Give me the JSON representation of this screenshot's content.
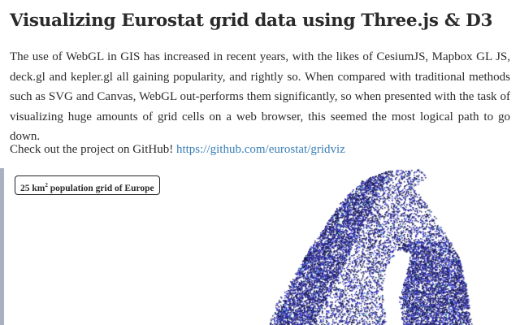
{
  "article": {
    "title": "Visualizing Eurostat grid data using Three.js & D3",
    "intro": "The use of WebGL in GIS has increased in recent years, with the likes of CesiumJS, Mapbox GL JS, deck.gl and kepler.gl all gaining popularity, and rightly so. When compared with traditional methods such as SVG and Canvas, WebGL out-performs them significantly, so when presented with the task of visualizing huge amounts of grid cells on a web browser, this seemed the most logical path to go down.",
    "github_prefix": "Check out the project on GitHub! ",
    "github_link": "https://github.com/eurostat/gridviz"
  },
  "map": {
    "label_prefix": "25 km",
    "label_sup": "2",
    "label_suffix": " population grid of Europe",
    "colors": {
      "dense": "#1a1a5e",
      "mid": "#3b3bd6",
      "high": "#3fc1c9",
      "link": "#3a7fb8"
    }
  }
}
